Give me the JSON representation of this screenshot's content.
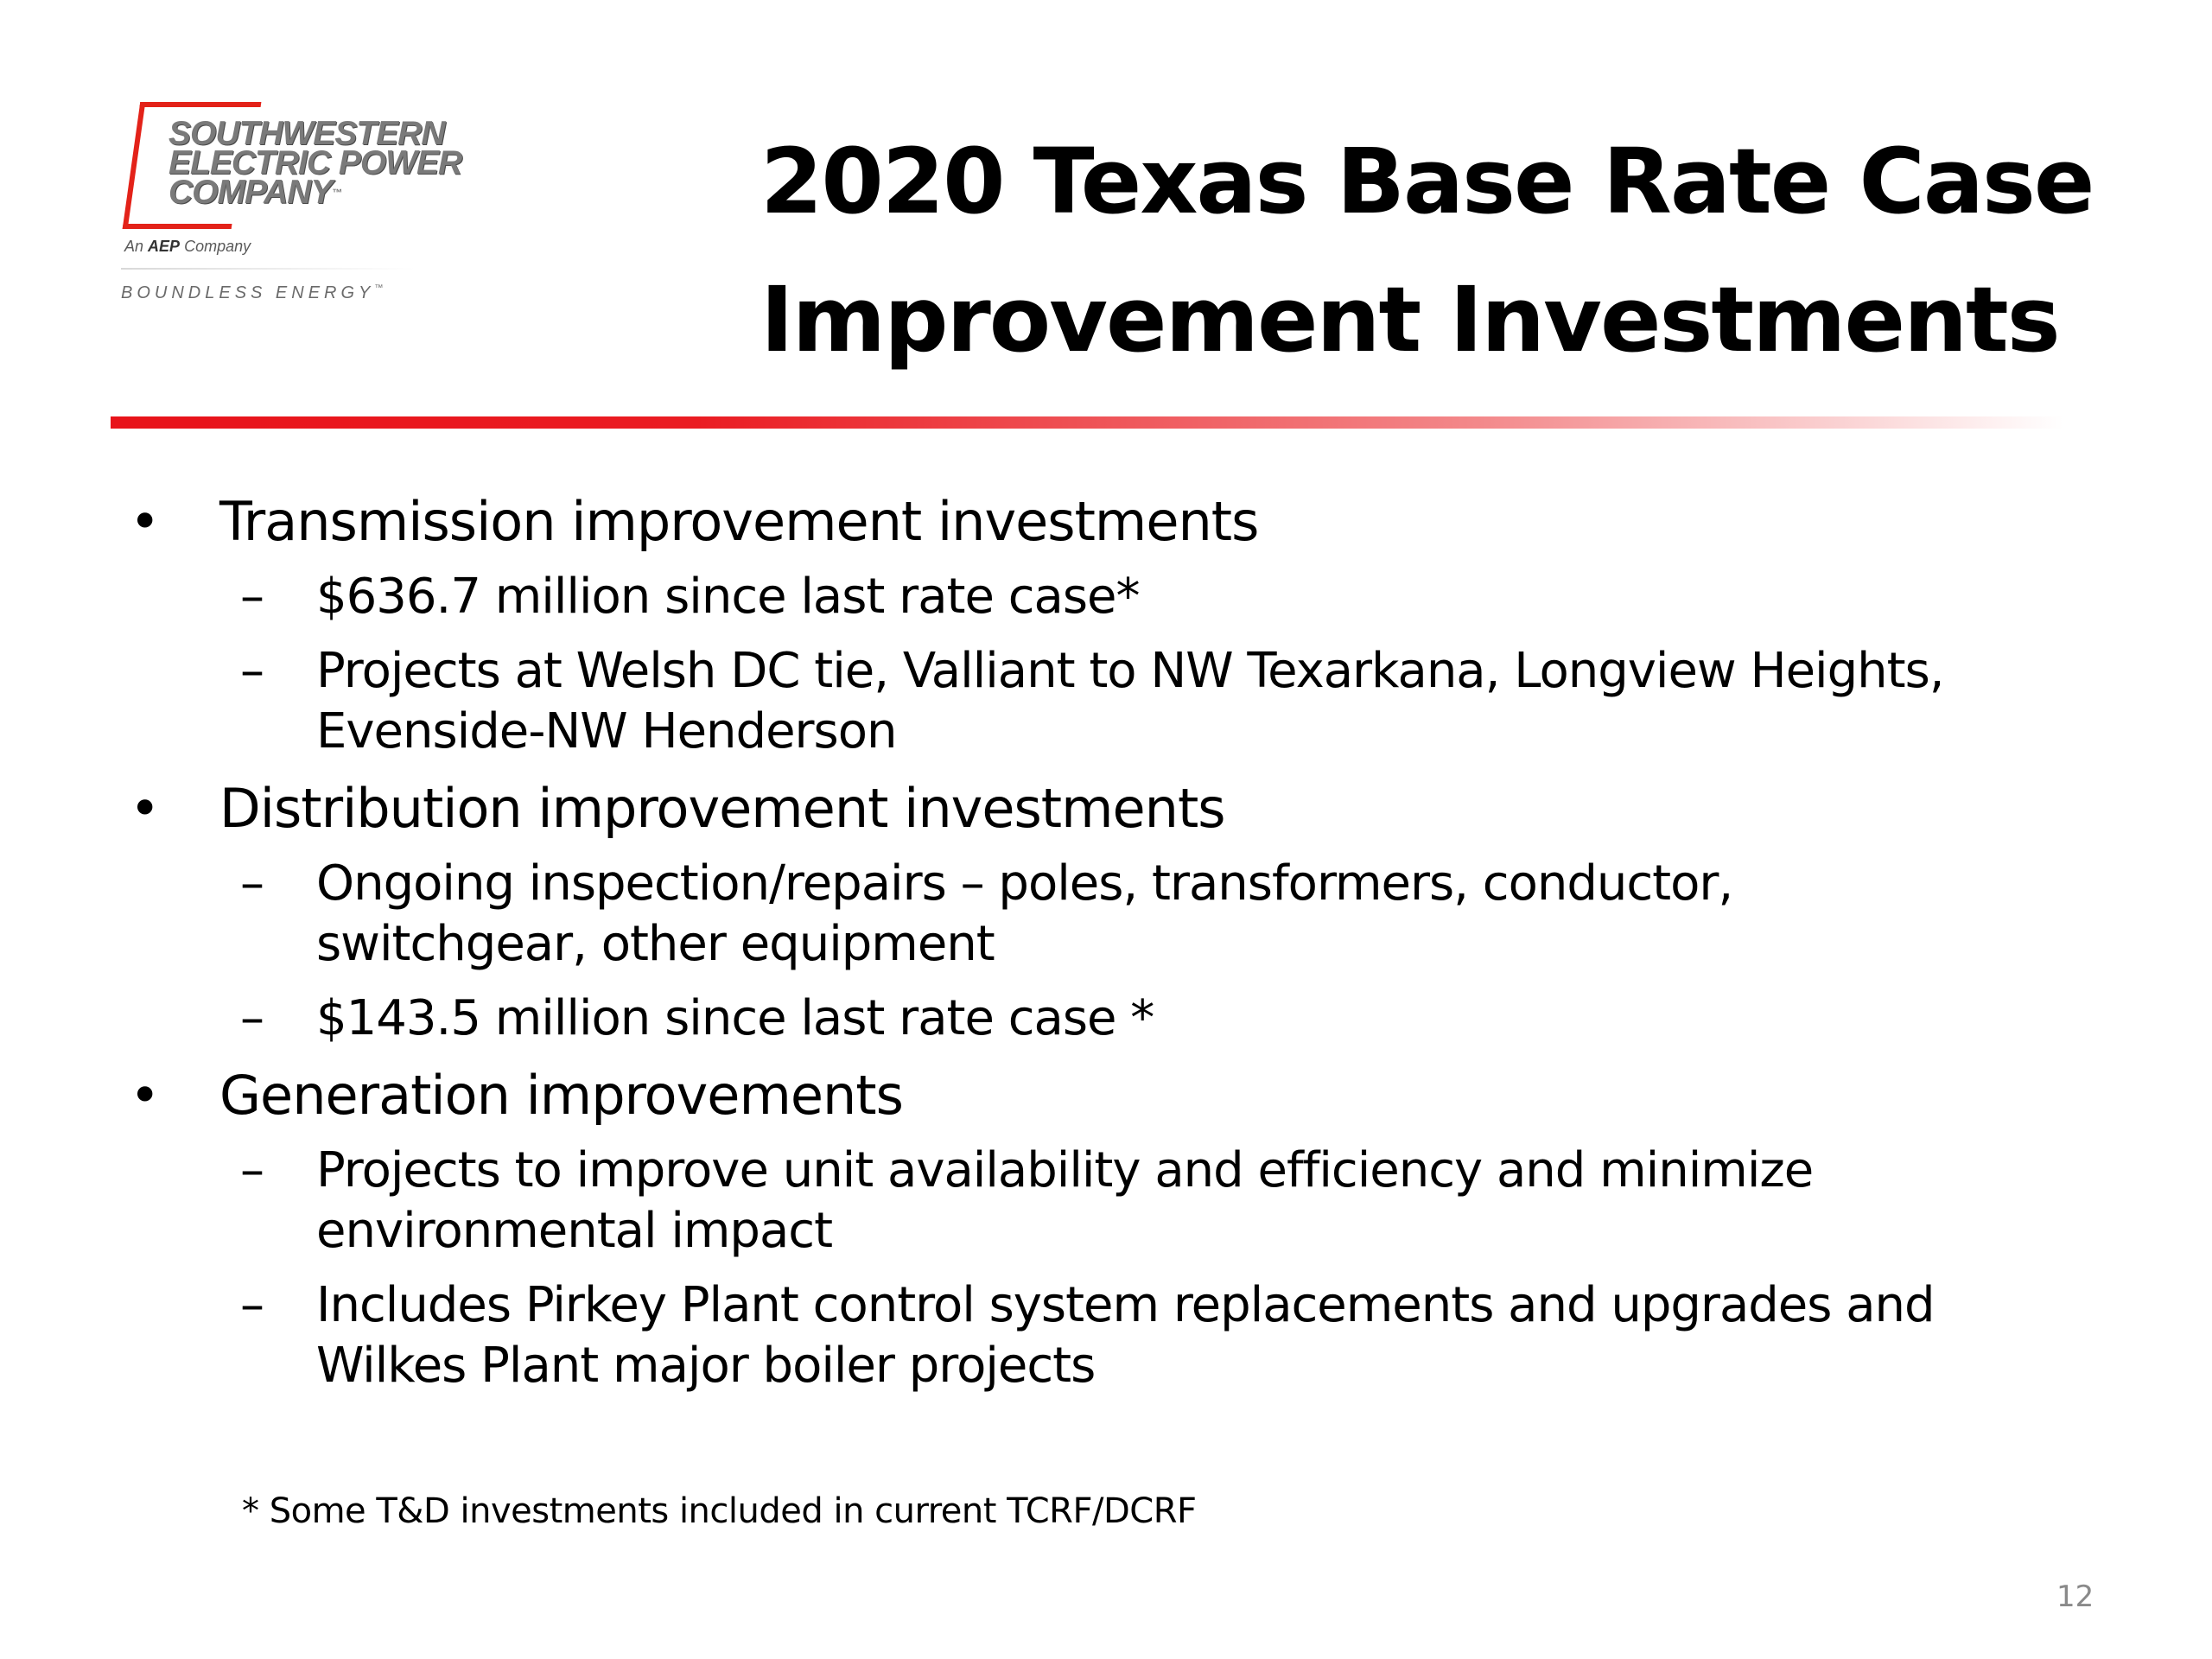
{
  "logo": {
    "company_lines": [
      "SOUTHWESTERN",
      "ELECTRIC POWER",
      "COMPANY"
    ],
    "tm_mark": "™",
    "parent_prefix": "An",
    "parent_name": "AEP",
    "parent_suffix": "Company",
    "tagline": "BOUNDLESS ENERGY",
    "brand_color": "#e32219"
  },
  "title": {
    "line1": "2020 Texas Base Rate Case",
    "line2": "Improvement Investments"
  },
  "rule_color": "#e8131a",
  "sections": [
    {
      "heading": "Transmission improvement investments",
      "items": [
        {
          "lines": [
            "$636.7 million since last rate case*"
          ]
        },
        {
          "lines": [
            "Projects at Welsh DC tie, Valliant to NW Texarkana, Longview Heights,",
            "Evenside-NW Henderson"
          ]
        }
      ]
    },
    {
      "heading": "Distribution improvement investments",
      "items": [
        {
          "lines": [
            "Ongoing inspection/repairs – poles, transformers, conductor,",
            "switchgear, other equipment"
          ]
        },
        {
          "lines": [
            "$143.5 million since last rate case *"
          ]
        }
      ]
    },
    {
      "heading": "Generation improvements",
      "items": [
        {
          "lines": [
            "Projects to improve unit availability and efficiency and minimize",
            "environmental impact"
          ]
        },
        {
          "lines": [
            "Includes Pirkey Plant control system replacements and upgrades and",
            "Wilkes Plant major boiler projects"
          ]
        }
      ]
    }
  ],
  "footnote": "* Some T&D investments included in current TCRF/DCRF",
  "page_number": "12"
}
